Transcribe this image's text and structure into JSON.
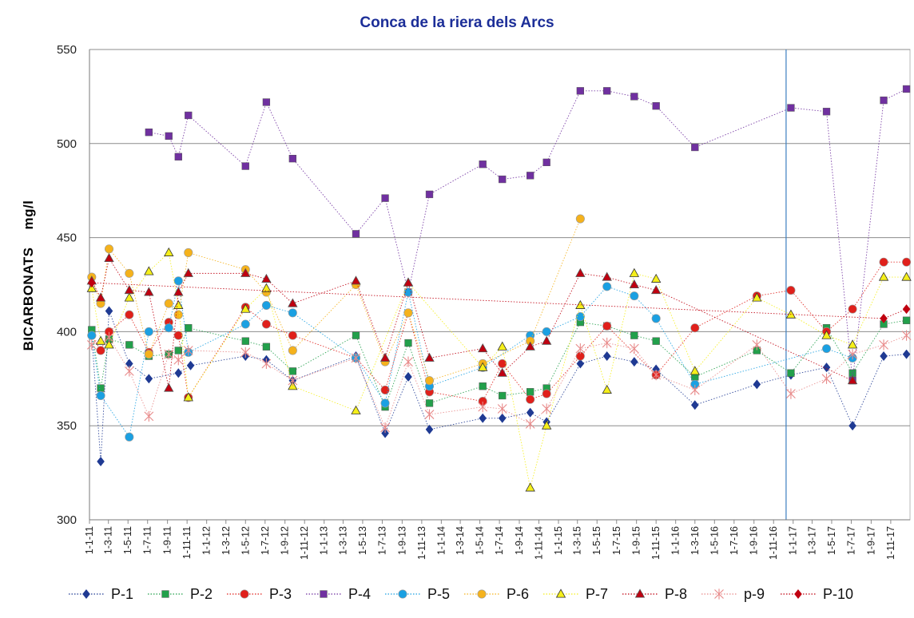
{
  "chart_data": {
    "type": "line",
    "title": "Conca de la riera dels Arcs",
    "ylabel": "BICARBONATS",
    "yunit": "mg/l",
    "xlabel": "",
    "ylim": [
      300,
      550
    ],
    "yticks": [
      300,
      350,
      400,
      450,
      500,
      550
    ],
    "grid": "horizontal",
    "legend_position": "bottom",
    "x_axis_start": "2011-01-01",
    "x_axis_end": "2017-12-31",
    "x_tick_labels": [
      "1-1-11",
      "1-3-11",
      "1-5-11",
      "1-7-11",
      "1-9-11",
      "1-11-11",
      "1-1-12",
      "1-3-12",
      "1-5-12",
      "1-7-12",
      "1-9-12",
      "1-11-12",
      "1-1-13",
      "1-3-13",
      "1-5-13",
      "1-7-13",
      "1-9-13",
      "1-11-13",
      "1-1-14",
      "1-3-14",
      "1-5-14",
      "1-7-14",
      "1-9-14",
      "1-11-14",
      "1-1-15",
      "1-3-15",
      "1-5-15",
      "1-7-15",
      "1-9-15",
      "1-11-15",
      "1-1-16",
      "1-3-16",
      "1-5-16",
      "1-7-16",
      "1-9-16",
      "1-11-16",
      "1-1-17",
      "1-3-17",
      "1-5-17",
      "1-7-17",
      "1-9-17",
      "1-11-17"
    ],
    "x_tick_dates": [
      "2011-01-01",
      "2011-03-01",
      "2011-05-01",
      "2011-07-01",
      "2011-09-01",
      "2011-11-01",
      "2012-01-01",
      "2012-03-01",
      "2012-05-01",
      "2012-07-01",
      "2012-09-01",
      "2012-11-01",
      "2013-01-01",
      "2013-03-01",
      "2013-05-01",
      "2013-07-01",
      "2013-09-01",
      "2013-11-01",
      "2014-01-01",
      "2014-03-01",
      "2014-05-01",
      "2014-07-01",
      "2014-09-01",
      "2014-11-01",
      "2015-01-01",
      "2015-03-01",
      "2015-05-01",
      "2015-07-01",
      "2015-09-01",
      "2015-11-01",
      "2016-01-01",
      "2016-03-01",
      "2016-05-01",
      "2016-07-01",
      "2016-09-01",
      "2016-11-01",
      "2017-01-01",
      "2017-03-01",
      "2017-05-01",
      "2017-07-01",
      "2017-09-01",
      "2017-11-01"
    ],
    "reference_line_date": "2016-12-10",
    "series": [
      {
        "name": "P-1",
        "color": "#1f3a93",
        "marker": "diamond",
        "points": [
          [
            "2011-01-08",
            398
          ],
          [
            "2011-02-05",
            331
          ],
          [
            "2011-03-03",
            411
          ],
          [
            "2011-05-05",
            383
          ],
          [
            "2011-07-05",
            375
          ],
          [
            "2011-10-05",
            378
          ],
          [
            "2011-11-12",
            382
          ],
          [
            "2012-05-01",
            387
          ],
          [
            "2012-07-05",
            385
          ],
          [
            "2012-09-25",
            374
          ],
          [
            "2013-04-10",
            387
          ],
          [
            "2013-07-10",
            346
          ],
          [
            "2013-09-20",
            376
          ],
          [
            "2013-11-25",
            348
          ],
          [
            "2014-05-10",
            354
          ],
          [
            "2014-07-10",
            354
          ],
          [
            "2014-10-05",
            357
          ],
          [
            "2014-11-25",
            352
          ],
          [
            "2015-03-10",
            383
          ],
          [
            "2015-06-01",
            387
          ],
          [
            "2015-08-25",
            384
          ],
          [
            "2015-11-01",
            380
          ],
          [
            "2016-03-01",
            361
          ],
          [
            "2016-09-10",
            372
          ],
          [
            "2016-12-25",
            377
          ],
          [
            "2017-04-15",
            381
          ],
          [
            "2017-07-05",
            350
          ],
          [
            "2017-10-10",
            387
          ],
          [
            "2017-12-20",
            388
          ]
        ]
      },
      {
        "name": "P-2",
        "color": "#22a04b",
        "marker": "square",
        "points": [
          [
            "2011-01-08",
            401
          ],
          [
            "2011-02-05",
            370
          ],
          [
            "2011-03-03",
            396
          ],
          [
            "2011-05-05",
            393
          ],
          [
            "2011-07-05",
            387
          ],
          [
            "2011-09-05",
            388
          ],
          [
            "2011-10-05",
            390
          ],
          [
            "2011-11-05",
            402
          ],
          [
            "2012-05-01",
            395
          ],
          [
            "2012-07-05",
            392
          ],
          [
            "2012-09-25",
            379
          ],
          [
            "2013-04-10",
            398
          ],
          [
            "2013-07-10",
            360
          ],
          [
            "2013-09-20",
            394
          ],
          [
            "2013-11-25",
            362
          ],
          [
            "2014-05-10",
            371
          ],
          [
            "2014-07-10",
            366
          ],
          [
            "2014-10-05",
            368
          ],
          [
            "2014-11-25",
            370
          ],
          [
            "2015-03-10",
            405
          ],
          [
            "2015-06-01",
            403
          ],
          [
            "2015-08-25",
            398
          ],
          [
            "2015-11-01",
            395
          ],
          [
            "2016-03-01",
            376
          ],
          [
            "2016-09-10",
            390
          ],
          [
            "2016-12-25",
            378
          ],
          [
            "2017-04-15",
            402
          ],
          [
            "2017-07-05",
            378
          ],
          [
            "2017-10-10",
            404
          ],
          [
            "2017-12-20",
            406
          ]
        ]
      },
      {
        "name": "P-3",
        "color": "#e0201b",
        "marker": "circle",
        "points": [
          [
            "2011-01-08",
            398
          ],
          [
            "2011-02-05",
            390
          ],
          [
            "2011-03-03",
            400
          ],
          [
            "2011-05-05",
            409
          ],
          [
            "2011-07-05",
            389
          ],
          [
            "2011-09-05",
            405
          ],
          [
            "2011-10-05",
            398
          ],
          [
            "2011-11-05",
            365
          ],
          [
            "2012-05-01",
            413
          ],
          [
            "2012-07-05",
            404
          ],
          [
            "2012-09-25",
            398
          ],
          [
            "2013-04-10",
            386
          ],
          [
            "2013-07-10",
            369
          ],
          [
            "2013-09-20",
            410
          ],
          [
            "2013-11-25",
            368
          ],
          [
            "2014-05-10",
            363
          ],
          [
            "2014-07-10",
            383
          ],
          [
            "2014-10-05",
            364
          ],
          [
            "2014-11-25",
            367
          ],
          [
            "2015-03-10",
            387
          ],
          [
            "2015-06-01",
            403
          ],
          [
            "2015-11-01",
            377
          ],
          [
            "2016-03-01",
            402
          ],
          [
            "2016-09-10",
            419
          ],
          [
            "2016-12-25",
            422
          ],
          [
            "2017-04-15",
            400
          ],
          [
            "2017-07-05",
            412
          ],
          [
            "2017-10-10",
            437
          ],
          [
            "2017-12-20",
            437
          ]
        ]
      },
      {
        "name": "P-4",
        "color": "#7030a0",
        "marker": "square",
        "points": [
          [
            "2011-07-05",
            506
          ],
          [
            "2011-09-05",
            504
          ],
          [
            "2011-10-05",
            493
          ],
          [
            "2011-11-05",
            515
          ],
          [
            "2012-05-01",
            488
          ],
          [
            "2012-07-05",
            522
          ],
          [
            "2012-09-25",
            492
          ],
          [
            "2013-04-10",
            452
          ],
          [
            "2013-07-10",
            471
          ],
          [
            "2013-09-20",
            421
          ],
          [
            "2013-11-25",
            473
          ],
          [
            "2014-05-10",
            489
          ],
          [
            "2014-07-10",
            481
          ],
          [
            "2014-10-05",
            483
          ],
          [
            "2014-11-25",
            490
          ],
          [
            "2015-03-10",
            528
          ],
          [
            "2015-06-01",
            528
          ],
          [
            "2015-08-25",
            525
          ],
          [
            "2015-11-01",
            520
          ],
          [
            "2016-03-01",
            498
          ],
          [
            "2016-12-25",
            519
          ],
          [
            "2017-04-15",
            517
          ],
          [
            "2017-07-05",
            374
          ],
          [
            "2017-10-10",
            523
          ],
          [
            "2017-12-20",
            529
          ]
        ]
      },
      {
        "name": "P-5",
        "color": "#1aa0e2",
        "marker": "circle",
        "points": [
          [
            "2011-01-08",
            398
          ],
          [
            "2011-02-05",
            366
          ],
          [
            "2011-05-05",
            344
          ],
          [
            "2011-07-05",
            400
          ],
          [
            "2011-09-05",
            402
          ],
          [
            "2011-10-05",
            427
          ],
          [
            "2011-11-05",
            389
          ],
          [
            "2012-05-01",
            404
          ],
          [
            "2012-07-05",
            414
          ],
          [
            "2012-09-25",
            410
          ],
          [
            "2013-04-10",
            386
          ],
          [
            "2013-07-10",
            362
          ],
          [
            "2013-09-20",
            421
          ],
          [
            "2013-11-25",
            371
          ],
          [
            "2014-05-10",
            381
          ],
          [
            "2014-10-05",
            398
          ],
          [
            "2014-11-25",
            400
          ],
          [
            "2015-03-10",
            408
          ],
          [
            "2015-06-01",
            424
          ],
          [
            "2015-08-25",
            419
          ],
          [
            "2015-11-01",
            407
          ],
          [
            "2016-03-01",
            372
          ],
          [
            "2017-04-15",
            391
          ],
          [
            "2017-07-05",
            386
          ]
        ]
      },
      {
        "name": "P-6",
        "color": "#f5b21c",
        "marker": "circle",
        "points": [
          [
            "2011-01-08",
            429
          ],
          [
            "2011-02-05",
            415
          ],
          [
            "2011-03-03",
            444
          ],
          [
            "2011-05-05",
            431
          ],
          [
            "2011-07-05",
            388
          ],
          [
            "2011-09-05",
            415
          ],
          [
            "2011-10-05",
            409
          ],
          [
            "2011-11-05",
            442
          ],
          [
            "2012-05-01",
            433
          ],
          [
            "2012-07-05",
            421
          ],
          [
            "2012-09-25",
            390
          ],
          [
            "2013-04-10",
            425
          ],
          [
            "2013-07-10",
            384
          ],
          [
            "2013-09-20",
            410
          ],
          [
            "2013-11-25",
            374
          ],
          [
            "2014-05-10",
            383
          ],
          [
            "2014-10-05",
            395
          ],
          [
            "2015-03-10",
            460
          ]
        ]
      },
      {
        "name": "P-7",
        "color": "#f5ef1a",
        "marker": "triangle",
        "points": [
          [
            "2011-01-08",
            423
          ],
          [
            "2011-02-05",
            395
          ],
          [
            "2011-03-03",
            393
          ],
          [
            "2011-05-05",
            418
          ],
          [
            "2011-07-05",
            432
          ],
          [
            "2011-09-05",
            442
          ],
          [
            "2011-10-05",
            414
          ],
          [
            "2011-11-05",
            365
          ],
          [
            "2012-05-01",
            412
          ],
          [
            "2012-07-05",
            423
          ],
          [
            "2012-09-25",
            371
          ],
          [
            "2013-04-10",
            358
          ],
          [
            "2013-09-20",
            426
          ],
          [
            "2014-05-10",
            381
          ],
          [
            "2014-07-10",
            392
          ],
          [
            "2014-10-05",
            317
          ],
          [
            "2014-11-25",
            350
          ],
          [
            "2015-03-10",
            414
          ],
          [
            "2015-06-01",
            369
          ],
          [
            "2015-08-25",
            431
          ],
          [
            "2015-11-01",
            428
          ],
          [
            "2016-03-01",
            379
          ],
          [
            "2016-09-10",
            418
          ],
          [
            "2016-12-25",
            409
          ],
          [
            "2017-04-15",
            398
          ],
          [
            "2017-07-05",
            393
          ],
          [
            "2017-10-10",
            429
          ],
          [
            "2017-12-20",
            429
          ]
        ]
      },
      {
        "name": "P-8",
        "color": "#c00010",
        "marker": "triangle",
        "points": [
          [
            "2011-01-08",
            427
          ],
          [
            "2011-02-05",
            418
          ],
          [
            "2011-03-03",
            439
          ],
          [
            "2011-05-05",
            422
          ],
          [
            "2011-07-05",
            421
          ],
          [
            "2011-09-05",
            370
          ],
          [
            "2011-10-05",
            421
          ],
          [
            "2011-11-05",
            431
          ],
          [
            "2012-05-01",
            431
          ],
          [
            "2012-07-05",
            428
          ],
          [
            "2012-09-25",
            415
          ],
          [
            "2013-04-10",
            427
          ],
          [
            "2013-07-10",
            386
          ],
          [
            "2013-09-20",
            426
          ],
          [
            "2013-11-25",
            386
          ],
          [
            "2014-05-10",
            391
          ],
          [
            "2014-07-10",
            378
          ],
          [
            "2014-10-05",
            392
          ],
          [
            "2014-11-25",
            395
          ],
          [
            "2015-03-10",
            431
          ],
          [
            "2015-06-01",
            429
          ],
          [
            "2015-08-25",
            425
          ],
          [
            "2015-11-01",
            422
          ],
          [
            "2017-07-05",
            374
          ]
        ]
      },
      {
        "name": "p-9",
        "color": "#e88a8a",
        "marker": "star",
        "points": [
          [
            "2011-01-08",
            393
          ],
          [
            "2011-03-03",
            397
          ],
          [
            "2011-05-05",
            379
          ],
          [
            "2011-07-05",
            355
          ],
          [
            "2011-09-05",
            388
          ],
          [
            "2011-10-05",
            385
          ],
          [
            "2011-11-05",
            390
          ],
          [
            "2012-05-01",
            389
          ],
          [
            "2012-07-05",
            383
          ],
          [
            "2012-09-25",
            374
          ],
          [
            "2013-04-10",
            386
          ],
          [
            "2013-07-10",
            349
          ],
          [
            "2013-09-20",
            384
          ],
          [
            "2013-11-25",
            356
          ],
          [
            "2014-05-10",
            360
          ],
          [
            "2014-07-10",
            359
          ],
          [
            "2014-10-05",
            351
          ],
          [
            "2014-11-25",
            359
          ],
          [
            "2015-03-10",
            391
          ],
          [
            "2015-06-01",
            394
          ],
          [
            "2015-08-25",
            391
          ],
          [
            "2015-11-01",
            377
          ],
          [
            "2016-03-01",
            369
          ],
          [
            "2016-09-10",
            393
          ],
          [
            "2016-12-25",
            367
          ],
          [
            "2017-04-15",
            375
          ],
          [
            "2017-07-05",
            388
          ],
          [
            "2017-10-10",
            393
          ],
          [
            "2017-12-20",
            398
          ]
        ]
      },
      {
        "name": "P-10",
        "color": "#c00010",
        "marker": "diamond",
        "points": [
          [
            "2011-01-08",
            426
          ],
          [
            "2017-10-10",
            407
          ],
          [
            "2017-12-20",
            412
          ]
        ]
      }
    ]
  }
}
